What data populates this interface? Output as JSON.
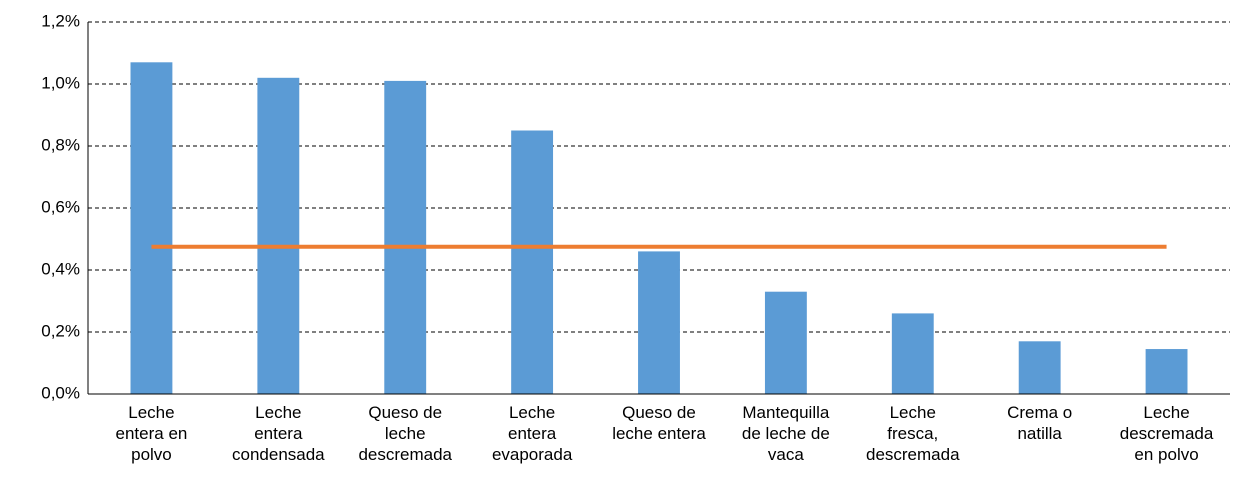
{
  "chart_data": {
    "type": "bar",
    "categories": [
      "Leche\nentera en\npolvo",
      "Leche\nentera\ncondensada",
      "Queso de\nleche\ndescremada",
      "Leche\nentera\nevaporada",
      "Queso de\nleche entera",
      "Mantequilla\nde leche de\nvaca",
      "Leche\nfresca,\ndescremada",
      "Crema o\nnatilla",
      "Leche\ndescremada\nen polvo"
    ],
    "series": [
      {
        "type": "bar",
        "color": "#5b9bd5",
        "values": [
          1.07,
          1.02,
          1.01,
          0.85,
          0.46,
          0.33,
          0.26,
          0.17,
          0.145
        ]
      },
      {
        "type": "line",
        "color": "#ed7d31",
        "values": [
          0.475,
          0.475,
          0.475,
          0.475,
          0.475,
          0.475,
          0.475,
          0.475,
          0.475
        ]
      }
    ],
    "ylim": [
      0,
      1.2
    ],
    "yticks": [
      {
        "value": 0,
        "label": "0,0%"
      },
      {
        "value": 0.2,
        "label": "0,2%"
      },
      {
        "value": 0.4,
        "label": "0,4%"
      },
      {
        "value": 0.6,
        "label": "0,6%"
      },
      {
        "value": 0.8,
        "label": "0,8%"
      },
      {
        "value": 1.0,
        "label": "1,0%"
      },
      {
        "value": 1.2,
        "label": "1,2%"
      }
    ],
    "grid": true
  }
}
